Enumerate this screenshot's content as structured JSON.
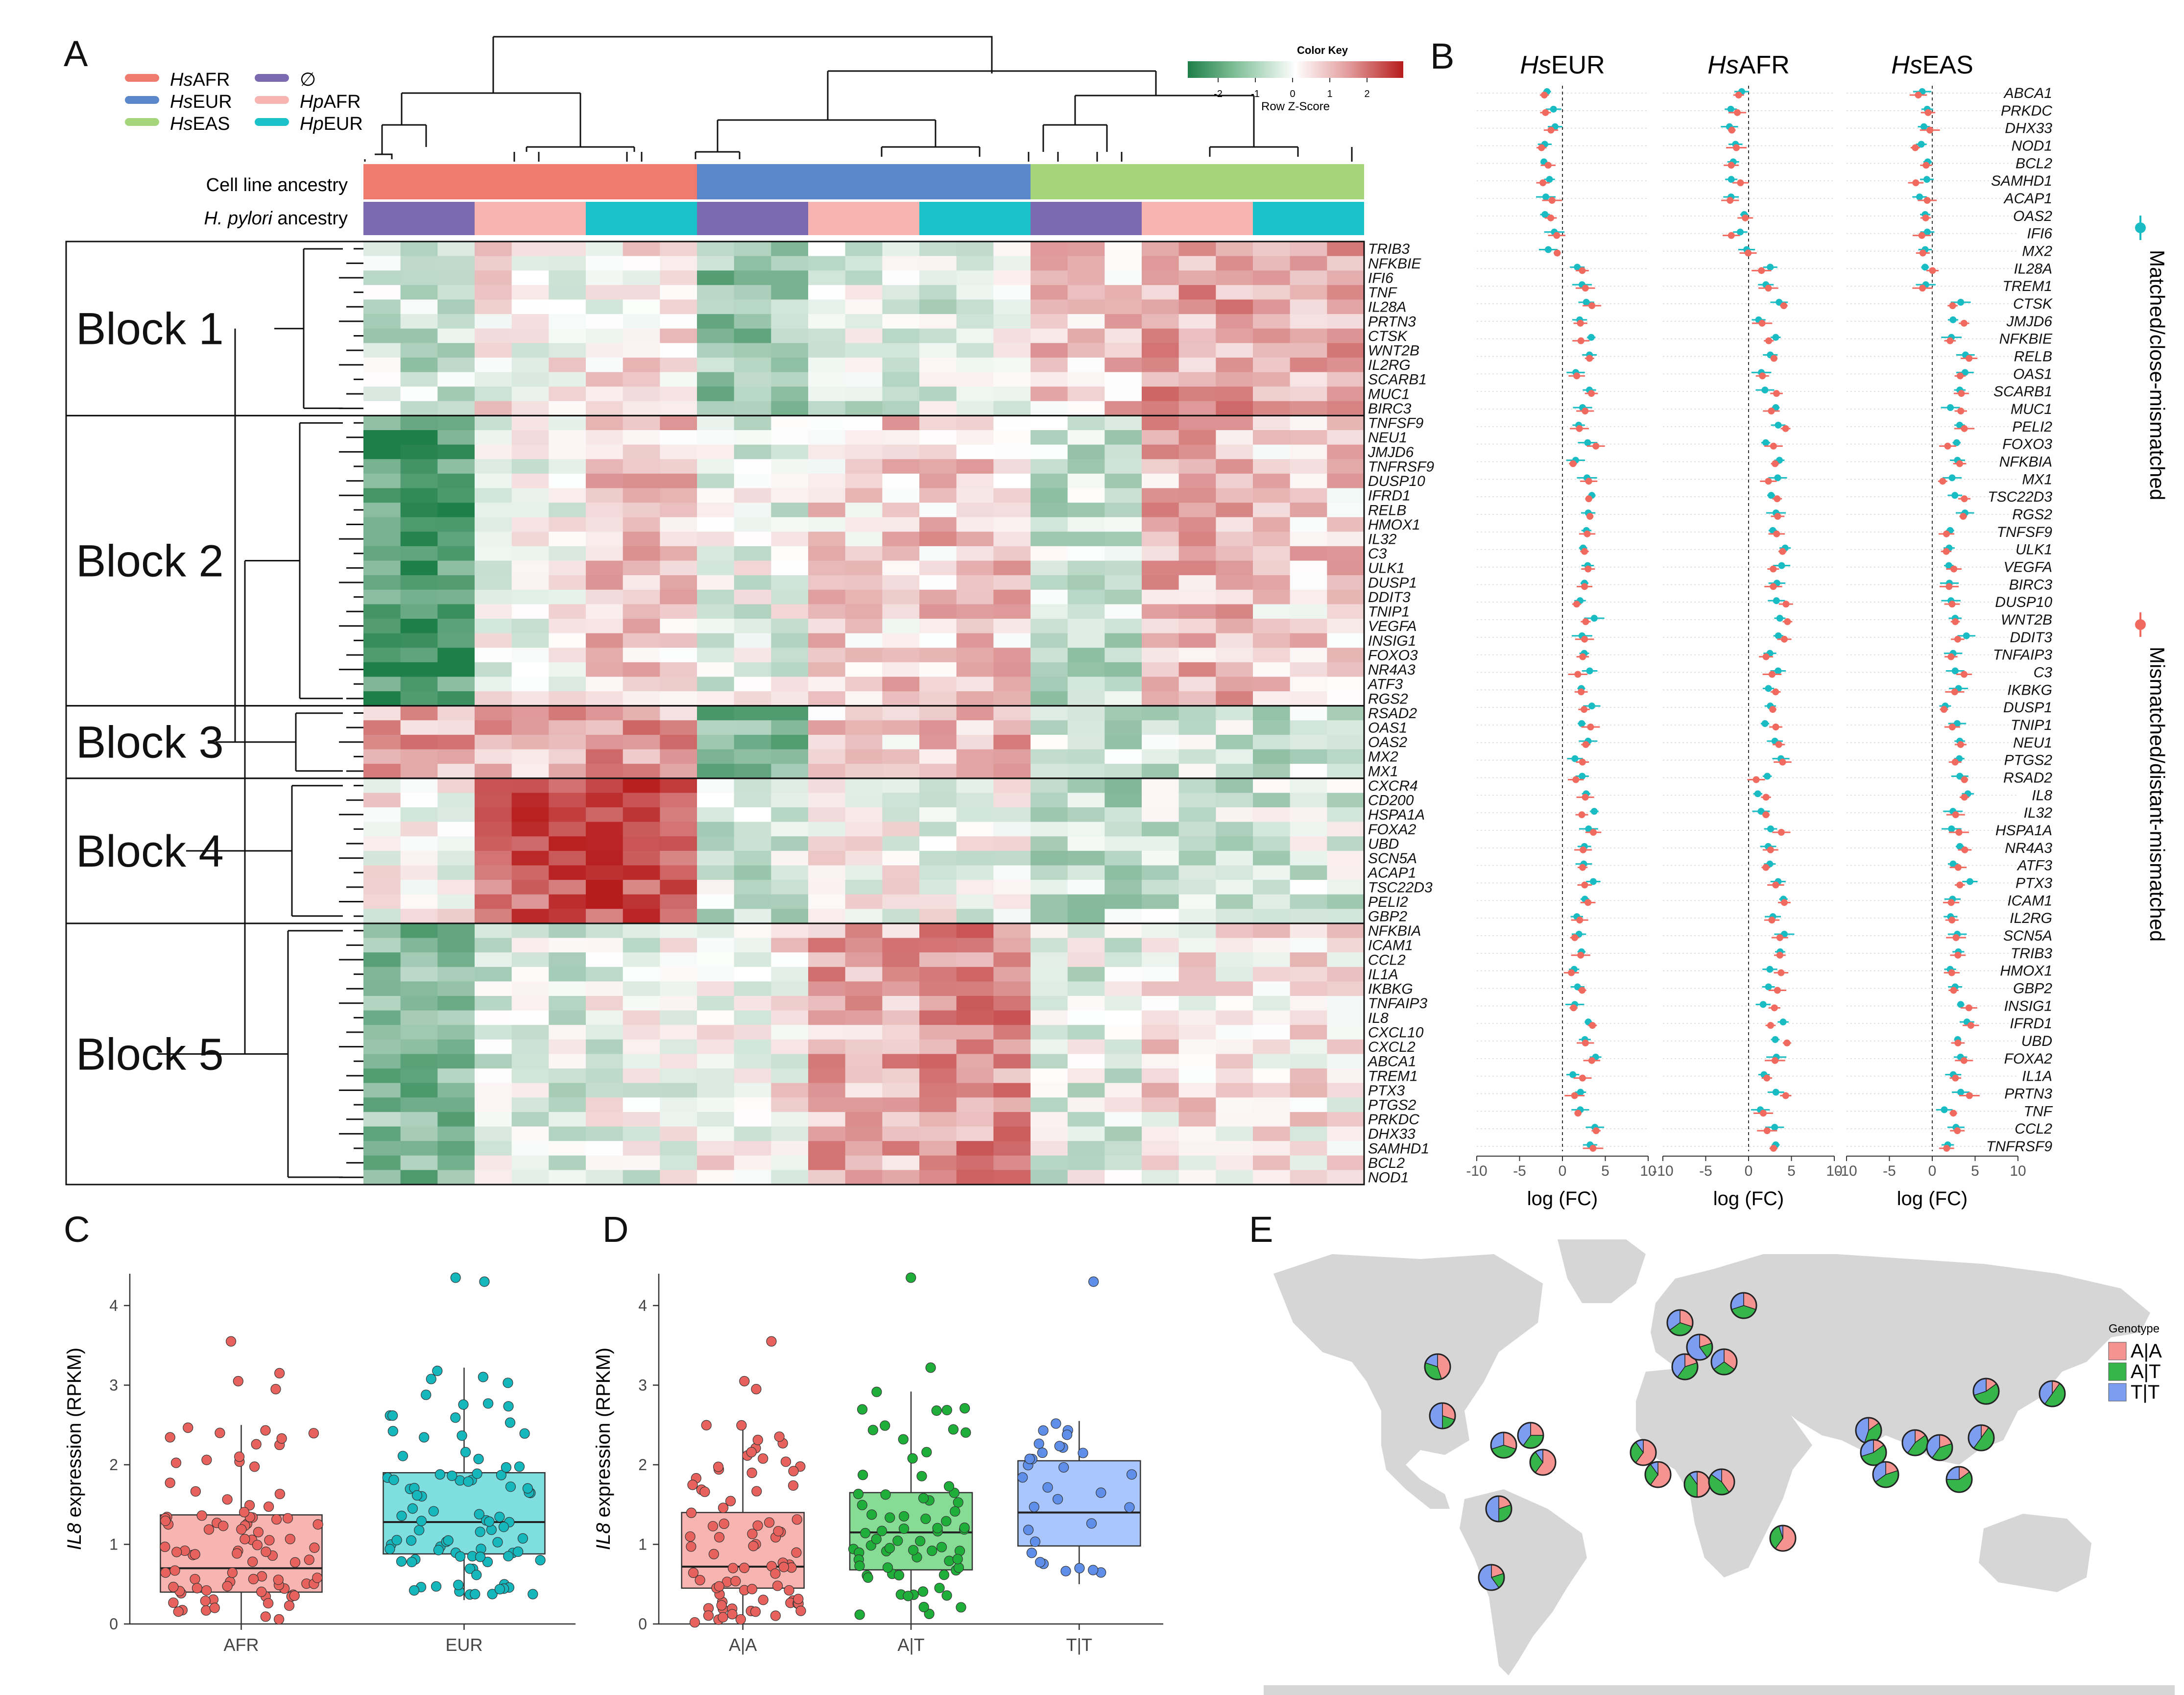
{
  "panels": {
    "a": "A",
    "b": "B",
    "c": "C",
    "d": "D",
    "e": "E"
  },
  "panelA": {
    "legend": [
      {
        "prefix": "Hs",
        "suffix": "AFR",
        "color": "#ef7a6e"
      },
      {
        "prefix": "Hs",
        "suffix": "EUR",
        "color": "#5b86c9"
      },
      {
        "prefix": "Hs",
        "suffix": "EAS",
        "color": "#a5d57a"
      },
      {
        "prefix": "",
        "suffix": "∅",
        "color": "#7c6ab1"
      },
      {
        "prefix": "Hp",
        "suffix": "AFR",
        "color": "#f8b4b0"
      },
      {
        "prefix": "Hp",
        "suffix": "EUR",
        "color": "#1ac1c8"
      }
    ],
    "color_key": {
      "title": "Color Key",
      "subtitle": "Row Z-Score",
      "ticks": [
        "-2",
        "-1",
        "0",
        "1",
        "2"
      ]
    },
    "row_labels": {
      "cell_line": "Cell line ancestry",
      "hp_prefix": "H. pylori",
      "hp_suffix": " ancestry"
    },
    "blocks": [
      {
        "name": "Block 1",
        "genes": [
          "TRIB3",
          "NFKBIE",
          "IFI6",
          "TNF",
          "IL28A",
          "PRTN3",
          "CTSK",
          "WNT2B",
          "IL2RG",
          "SCARB1",
          "MUC1",
          "BIRC3"
        ]
      },
      {
        "name": "Block 2",
        "genes": [
          "TNFSF9",
          "NEU1",
          "JMJD6",
          "TNFRSF9",
          "DUSP10",
          "IFRD1",
          "RELB",
          "HMOX1",
          "IL32",
          "C3",
          "ULK1",
          "DUSP1",
          "DDIT3",
          "TNIP1",
          "VEGFA",
          "INSIG1",
          "FOXO3",
          "NR4A3",
          "ATF3",
          "RGS2"
        ]
      },
      {
        "name": "Block 3",
        "genes": [
          "RSAD2",
          "OAS1",
          "OAS2",
          "MX2",
          "MX1"
        ]
      },
      {
        "name": "Block 4",
        "genes": [
          "CXCR4",
          "CD200",
          "HSPA1A",
          "FOXA2",
          "UBD",
          "SCN5A",
          "ACAP1",
          "TSC22D3",
          "PELI2",
          "GBP2"
        ]
      },
      {
        "name": "Block 5",
        "genes": [
          "NFKBIA",
          "ICAM1",
          "CCL2",
          "IL1A",
          "IKBKG",
          "TNFAIP3",
          "IL8",
          "CXCL10",
          "CXCL2",
          "ABCA1",
          "TREM1",
          "PTX3",
          "PTGS2",
          "PRKDC",
          "DHX33",
          "SAMHD1",
          "BCL2",
          "NOD1"
        ]
      }
    ]
  },
  "panelB": {
    "columns": [
      {
        "prefix": "Hs",
        "suffix": "EUR"
      },
      {
        "prefix": "Hs",
        "suffix": "AFR"
      },
      {
        "prefix": "Hs",
        "suffix": "EAS"
      }
    ],
    "xlabel": "log (FC)",
    "xticks": [
      "-10",
      "-5",
      "0",
      "5",
      "10"
    ],
    "legend_matched": "Matched/close-mismatched",
    "legend_mismatched": "Mismatched/distant-mismatched",
    "colors": {
      "matched": "#19bcc2",
      "mismatched": "#f06a60"
    },
    "genes": [
      "ABCA1",
      "PRKDC",
      "DHX33",
      "NOD1",
      "BCL2",
      "SAMHD1",
      "ACAP1",
      "OAS2",
      "IFI6",
      "MX2",
      "IL28A",
      "TREM1",
      "CTSK",
      "JMJD6",
      "NFKBIE",
      "RELB",
      "OAS1",
      "SCARB1",
      "MUC1",
      "PELI2",
      "FOXO3",
      "NFKBIA",
      "MX1",
      "TSC22D3",
      "RGS2",
      "TNFSF9",
      "ULK1",
      "VEGFA",
      "BIRC3",
      "DUSP10",
      "WNT2B",
      "DDIT3",
      "TNFAIP3",
      "C3",
      "IKBKG",
      "DUSP1",
      "TNIP1",
      "NEU1",
      "PTGS2",
      "RSAD2",
      "IL8",
      "IL32",
      "HSPA1A",
      "NR4A3",
      "ATF3",
      "PTX3",
      "ICAM1",
      "IL2RG",
      "SCN5A",
      "TRIB3",
      "HMOX1",
      "GBP2",
      "INSIG1",
      "IFRD1",
      "UBD",
      "FOXA2",
      "IL1A",
      "PRTN3",
      "TNF",
      "CCL2",
      "TNFRSF9"
    ]
  },
  "panelC": {
    "ylabel_gene": "IL8",
    "ylabel_rest": " expression (RPKM)",
    "yticks": [
      "0",
      "1",
      "2",
      "3",
      "4"
    ],
    "chart_data": {
      "type": "box",
      "categories": [
        "AFR",
        "EUR"
      ],
      "colors": {
        "fill": [
          "#f8b4b0",
          "#7fdfe0"
        ],
        "point": [
          "#e8625d",
          "#16b6bd"
        ]
      },
      "ylim": [
        0,
        4.4
      ],
      "series": [
        {
          "name": "AFR",
          "min": 0.0,
          "q1": 0.4,
          "median": 0.7,
          "q3": 1.37,
          "max": 2.5,
          "n_points": 90,
          "outliers": [
            3.15,
            3.05,
            2.95,
            3.55
          ]
        },
        {
          "name": "EUR",
          "min": 0.3,
          "q1": 0.88,
          "median": 1.28,
          "q3": 1.9,
          "max": 3.22,
          "n_points": 90,
          "outliers": [
            4.35,
            4.3
          ]
        }
      ]
    }
  },
  "panelD": {
    "ylabel_gene": "IL8",
    "ylabel_rest": " expression (RPKM)",
    "yticks": [
      "0",
      "1",
      "2",
      "3",
      "4"
    ],
    "chart_data": {
      "type": "box",
      "categories": [
        "A|A",
        "A|T",
        "T|T"
      ],
      "colors": {
        "fill": [
          "#f8b4b0",
          "#86dc94",
          "#a9c6ff"
        ],
        "point": [
          "#e8625d",
          "#1fae39",
          "#5e8ee8"
        ]
      },
      "ylim": [
        0,
        4.4
      ],
      "series": [
        {
          "name": "A|A",
          "min": 0.0,
          "q1": 0.45,
          "median": 0.72,
          "q3": 1.4,
          "max": 2.5,
          "n_points": 80,
          "outliers": [
            3.55,
            3.05,
            2.95
          ]
        },
        {
          "name": "A|T",
          "min": 0.0,
          "q1": 0.68,
          "median": 1.15,
          "q3": 1.65,
          "max": 2.92,
          "n_points": 70,
          "outliers": [
            4.35,
            3.22
          ]
        },
        {
          "name": "T|T",
          "min": 0.5,
          "q1": 0.98,
          "median": 1.4,
          "q3": 2.05,
          "max": 2.55,
          "n_points": 30,
          "outliers": [
            4.3
          ]
        }
      ]
    }
  },
  "panelE": {
    "legend_title": "Genotype",
    "legend": [
      {
        "label": "A|A",
        "color": "#f4938f"
      },
      {
        "label": "A|T",
        "color": "#35b54a"
      },
      {
        "label": "T|T",
        "color": "#7d9ef0"
      }
    ]
  }
}
